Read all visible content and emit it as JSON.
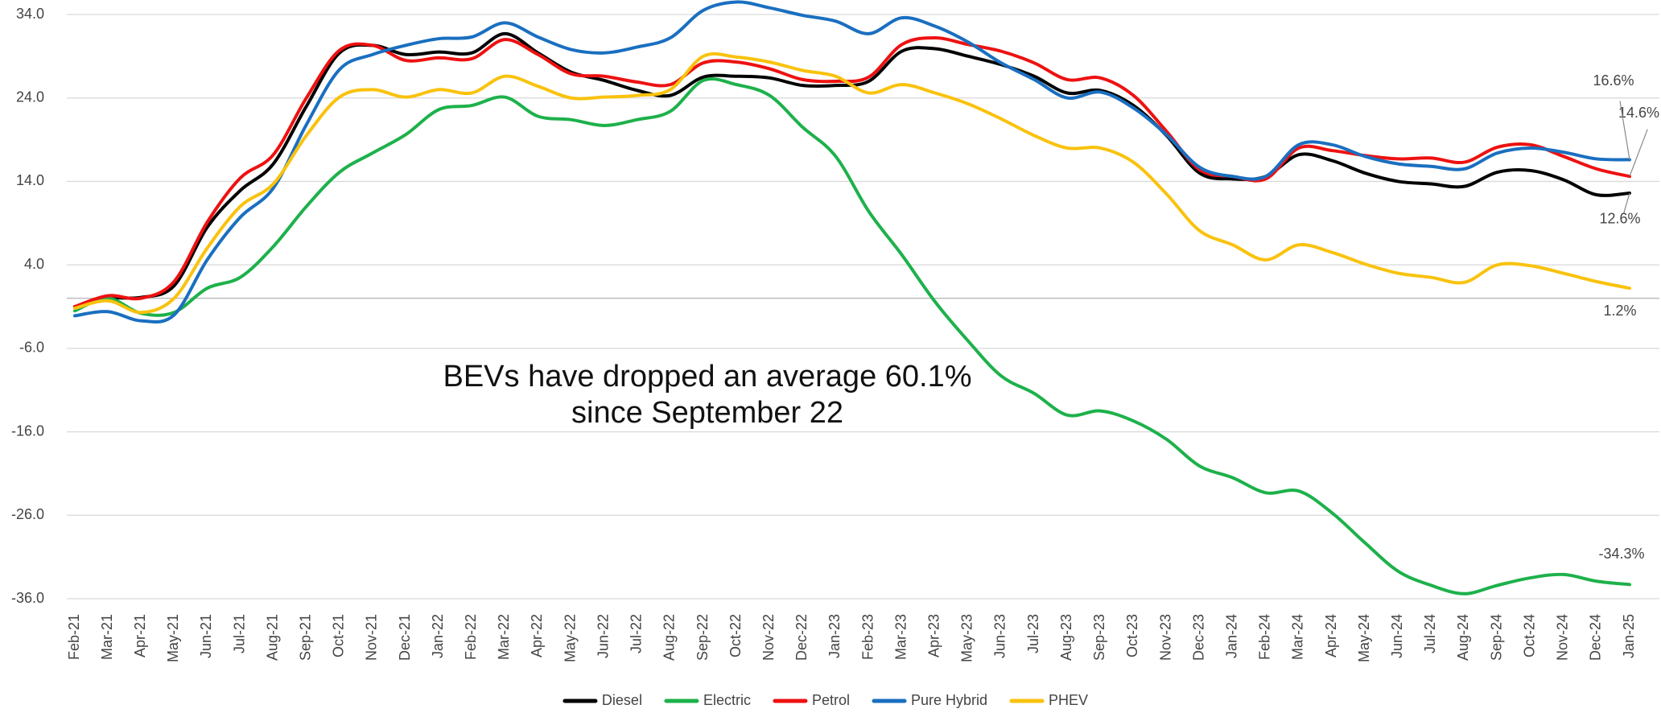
{
  "chart_data": {
    "type": "line",
    "annotation": [
      "BEVs have dropped an average 60.1%",
      "since September 22"
    ],
    "categories": [
      "Feb-21",
      "Mar-21",
      "Apr-21",
      "May-21",
      "Jun-21",
      "Jul-21",
      "Aug-21",
      "Sep-21",
      "Oct-21",
      "Nov-21",
      "Dec-21",
      "Jan-22",
      "Feb-22",
      "Mar-22",
      "Apr-22",
      "May-22",
      "Jun-22",
      "Jul-22",
      "Aug-22",
      "Sep-22",
      "Oct-22",
      "Nov-22",
      "Dec-22",
      "Jan-23",
      "Feb-23",
      "Mar-23",
      "Apr-23",
      "May-23",
      "Jun-23",
      "Jul-23",
      "Aug-23",
      "Sep-23",
      "Oct-23",
      "Nov-23",
      "Dec-23",
      "Jan-24",
      "Feb-24",
      "Mar-24",
      "Apr-24",
      "May-24",
      "Jun-24",
      "Jul-24",
      "Aug-24",
      "Sep-24",
      "Oct-24",
      "Nov-24",
      "Dec-24",
      "Jan-25"
    ],
    "series": [
      {
        "name": "Diesel",
        "color": "#000000",
        "values": [
          -1.0,
          0.0,
          0.1,
          1.5,
          8.5,
          12.9,
          16.1,
          23.0,
          29.4,
          30.3,
          29.2,
          29.5,
          29.4,
          31.7,
          29.4,
          27.1,
          26.1,
          24.9,
          24.3,
          26.5,
          26.6,
          26.4,
          25.5,
          25.5,
          26.0,
          29.6,
          29.9,
          29.0,
          28.0,
          26.6,
          24.6,
          24.9,
          23.1,
          19.5,
          15.0,
          14.3,
          14.6,
          17.2,
          16.5,
          15.0,
          14.0,
          13.7,
          13.4,
          15.1,
          15.3,
          14.2,
          12.4,
          12.6
        ],
        "value_labels": [
          null,
          null,
          null,
          null,
          null,
          null,
          null,
          null,
          null,
          null,
          null,
          null,
          null,
          null,
          null,
          null,
          null,
          null,
          null,
          null,
          null,
          null,
          null,
          null,
          null,
          null,
          null,
          null,
          null,
          null,
          null,
          null,
          null,
          null,
          null,
          null,
          null,
          null,
          null,
          null,
          null,
          null,
          null,
          null,
          null,
          null,
          null,
          "12.6%"
        ]
      },
      {
        "name": "Electric",
        "color": "#1db14b",
        "values": [
          -1.5,
          0.0,
          -1.8,
          -1.7,
          1.2,
          2.5,
          6.2,
          11.0,
          15.1,
          17.4,
          19.6,
          22.6,
          23.1,
          24.1,
          21.8,
          21.4,
          20.7,
          21.4,
          22.4,
          26.1,
          25.6,
          24.3,
          20.5,
          17.0,
          10.4,
          5.2,
          -0.4,
          -5.1,
          -9.3,
          -11.4,
          -14.0,
          -13.5,
          -14.7,
          -16.9,
          -20.1,
          -21.5,
          -23.3,
          -23.1,
          -25.7,
          -29.3,
          -32.7,
          -34.4,
          -35.4,
          -34.4,
          -33.5,
          -33.1,
          -33.9,
          -34.3
        ],
        "value_labels": [
          null,
          null,
          null,
          null,
          null,
          null,
          null,
          null,
          null,
          null,
          null,
          null,
          null,
          null,
          null,
          null,
          null,
          null,
          null,
          null,
          null,
          null,
          null,
          null,
          null,
          null,
          null,
          null,
          null,
          null,
          null,
          null,
          null,
          null,
          null,
          null,
          null,
          null,
          null,
          null,
          null,
          null,
          null,
          null,
          null,
          null,
          null,
          "-34.3%"
        ]
      },
      {
        "name": "Petrol",
        "color": "#ee1111",
        "values": [
          -1.0,
          0.3,
          0.0,
          2.0,
          9.1,
          14.4,
          17.2,
          24.0,
          29.7,
          30.3,
          28.5,
          28.8,
          28.7,
          31.0,
          29.2,
          26.9,
          26.6,
          25.9,
          25.6,
          28.2,
          28.3,
          27.5,
          26.2,
          26.0,
          26.5,
          30.4,
          31.2,
          30.4,
          29.6,
          28.2,
          26.2,
          26.4,
          24.3,
          20.0,
          15.4,
          14.6,
          14.3,
          18.0,
          17.7,
          17.1,
          16.7,
          16.8,
          16.3,
          18.1,
          18.4,
          17.0,
          15.5,
          14.6
        ],
        "value_labels": [
          null,
          null,
          null,
          null,
          null,
          null,
          null,
          null,
          null,
          null,
          null,
          null,
          null,
          null,
          null,
          null,
          null,
          null,
          null,
          null,
          null,
          null,
          null,
          null,
          null,
          null,
          null,
          null,
          null,
          null,
          null,
          null,
          null,
          null,
          null,
          null,
          null,
          null,
          null,
          null,
          null,
          null,
          null,
          null,
          null,
          null,
          null,
          "14.6%"
        ]
      },
      {
        "name": "Pure Hybrid",
        "color": "#1a6fc0",
        "values": [
          -2.1,
          -1.6,
          -2.7,
          -2.0,
          4.6,
          9.7,
          13.2,
          20.8,
          27.4,
          29.2,
          30.3,
          31.1,
          31.3,
          33.0,
          31.3,
          29.8,
          29.4,
          30.1,
          31.2,
          34.5,
          35.5,
          34.8,
          33.9,
          33.2,
          31.7,
          33.6,
          32.6,
          30.7,
          28.2,
          26.2,
          24.0,
          24.7,
          22.8,
          19.6,
          15.7,
          14.6,
          14.6,
          18.4,
          18.4,
          17.0,
          16.1,
          15.8,
          15.5,
          17.4,
          18.0,
          17.5,
          16.7,
          16.6
        ],
        "value_labels": [
          null,
          null,
          null,
          null,
          null,
          null,
          null,
          null,
          null,
          null,
          null,
          null,
          null,
          null,
          null,
          null,
          null,
          null,
          null,
          null,
          null,
          null,
          null,
          null,
          null,
          null,
          null,
          null,
          null,
          null,
          null,
          null,
          null,
          null,
          null,
          null,
          null,
          null,
          null,
          null,
          null,
          null,
          null,
          null,
          null,
          null,
          null,
          "16.6%"
        ]
      },
      {
        "name": "PHEV",
        "color": "#f9c20d",
        "values": [
          -1.2,
          -0.3,
          -1.7,
          0.0,
          6.0,
          11.0,
          13.7,
          19.5,
          24.1,
          25.0,
          24.1,
          25.0,
          24.6,
          26.6,
          25.4,
          24.0,
          24.1,
          24.3,
          25.0,
          29.0,
          28.9,
          28.3,
          27.3,
          26.6,
          24.6,
          25.6,
          24.6,
          23.3,
          21.5,
          19.5,
          18.0,
          18.0,
          16.3,
          12.5,
          8.1,
          6.4,
          4.6,
          6.4,
          5.5,
          4.1,
          3.0,
          2.5,
          1.9,
          4.0,
          3.9,
          3.0,
          2.0,
          1.2
        ],
        "value_labels": [
          null,
          null,
          null,
          null,
          null,
          null,
          null,
          null,
          null,
          null,
          null,
          null,
          null,
          null,
          null,
          null,
          null,
          null,
          null,
          null,
          null,
          null,
          null,
          null,
          null,
          null,
          null,
          null,
          null,
          null,
          null,
          null,
          null,
          null,
          null,
          null,
          null,
          null,
          null,
          null,
          null,
          null,
          null,
          null,
          null,
          null,
          null,
          "1.2%"
        ]
      }
    ],
    "ylim": [
      -36,
      34
    ],
    "yticks": [
      {
        "value": 34,
        "label": "34.0"
      },
      {
        "value": 24,
        "label": "24.0"
      },
      {
        "value": 14,
        "label": "14.0"
      },
      {
        "value": 4,
        "label": "4.0"
      },
      {
        "value": -6,
        "label": "-6.0"
      },
      {
        "value": -16,
        "label": "-16.0"
      },
      {
        "value": -26,
        "label": "-26.0"
      },
      {
        "value": -36,
        "label": "-36.0"
      }
    ],
    "grid": true,
    "legend": "bottom"
  }
}
